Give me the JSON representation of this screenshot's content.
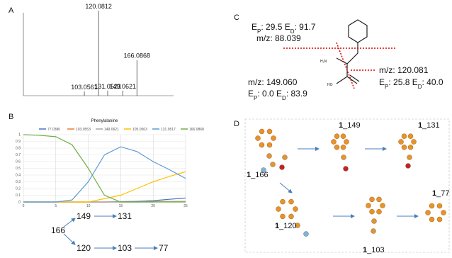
{
  "chart_data": [
    {
      "type": "bar",
      "x": [
        103.0561,
        120.0812,
        131.0523,
        149.0621,
        166.0868
      ],
      "values": [
        5,
        100,
        6,
        6,
        42
      ],
      "xlim": [
        30,
        210
      ],
      "ylim": [
        0,
        100
      ],
      "color": "#444444"
    },
    {
      "type": "line",
      "title": "Phenylalanine",
      "x": [
        0,
        2.5,
        5,
        7.5,
        10,
        12.5,
        15,
        17.5,
        20,
        22.5,
        25
      ],
      "series": [
        {
          "name": "77.0380",
          "color": "#4472c4",
          "values": [
            0,
            0,
            0,
            0,
            0,
            0,
            0.005,
            0.01,
            0.02,
            0.04,
            0.06
          ]
        },
        {
          "name": "103.0553",
          "color": "#ed7d31",
          "values": [
            0,
            0,
            0,
            0,
            0,
            0,
            0,
            0,
            0.005,
            0.01,
            0.01
          ]
        },
        {
          "name": "149.0621",
          "color": "#a5a5a5",
          "values": [
            0,
            0,
            0,
            0,
            0,
            0,
            0,
            0,
            0,
            0.005,
            0.005
          ]
        },
        {
          "name": "105.0563",
          "color": "#ffc000",
          "values": [
            0,
            0,
            0,
            0,
            0,
            0.05,
            0.1,
            0.2,
            0.3,
            0.38,
            0.45
          ]
        },
        {
          "name": "131.0517",
          "color": "#5b9bd5",
          "values": [
            0,
            0,
            0,
            0.03,
            0.3,
            0.7,
            0.82,
            0.75,
            0.6,
            0.48,
            0.35
          ]
        },
        {
          "name": "166.0868",
          "color": "#70ad47",
          "values": [
            1,
            0.99,
            0.97,
            0.85,
            0.5,
            0.1,
            0,
            0,
            0,
            0,
            0
          ]
        }
      ],
      "xlim": [
        0,
        25
      ],
      "xticks": [
        0,
        5,
        10,
        15,
        20,
        25
      ],
      "ylim": [
        0,
        1
      ],
      "yticks": [
        0,
        0.1,
        0.2,
        0.3,
        0.4,
        0.5,
        0.6,
        0.7,
        0.8,
        0.9,
        1
      ],
      "grid": true
    }
  ],
  "panel_labels": [
    "A",
    "B",
    "C",
    "D"
  ],
  "tree": [
    "166",
    "149",
    "131",
    "120",
    "103",
    "77"
  ],
  "panel_c": {
    "amine": "H₂N",
    "hydroxyl": "HO",
    "mz": [
      "m/z: 88.039",
      "m/z: 149.060",
      "m/z: 120.081"
    ],
    "energies": [
      [
        "E",
        "P",
        ": 29.5 E",
        "D",
        ": 91.7"
      ],
      [
        "E",
        "P",
        ": 0.0 E",
        "D",
        ": 83.9"
      ],
      [
        "E",
        "P",
        ": 25.8 E",
        "D",
        ": 40.0"
      ]
    ]
  },
  "panel_d": {
    "compound": "1",
    "suffixes": [
      "_166",
      "_149",
      "_131",
      "_120",
      "_103",
      "_77"
    ]
  }
}
